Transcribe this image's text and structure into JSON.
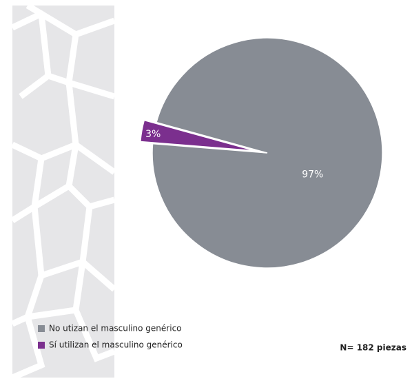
{
  "chart_data": {
    "type": "pie",
    "categories": [
      "No utizan el masculino genérico",
      "Sí utilizan el masculino genérico"
    ],
    "values": [
      97,
      3
    ],
    "value_labels": [
      "97%",
      "3%"
    ],
    "colors": [
      "#878c94",
      "#7b2f8e"
    ],
    "annotation": "N= 182 piezas"
  }
}
